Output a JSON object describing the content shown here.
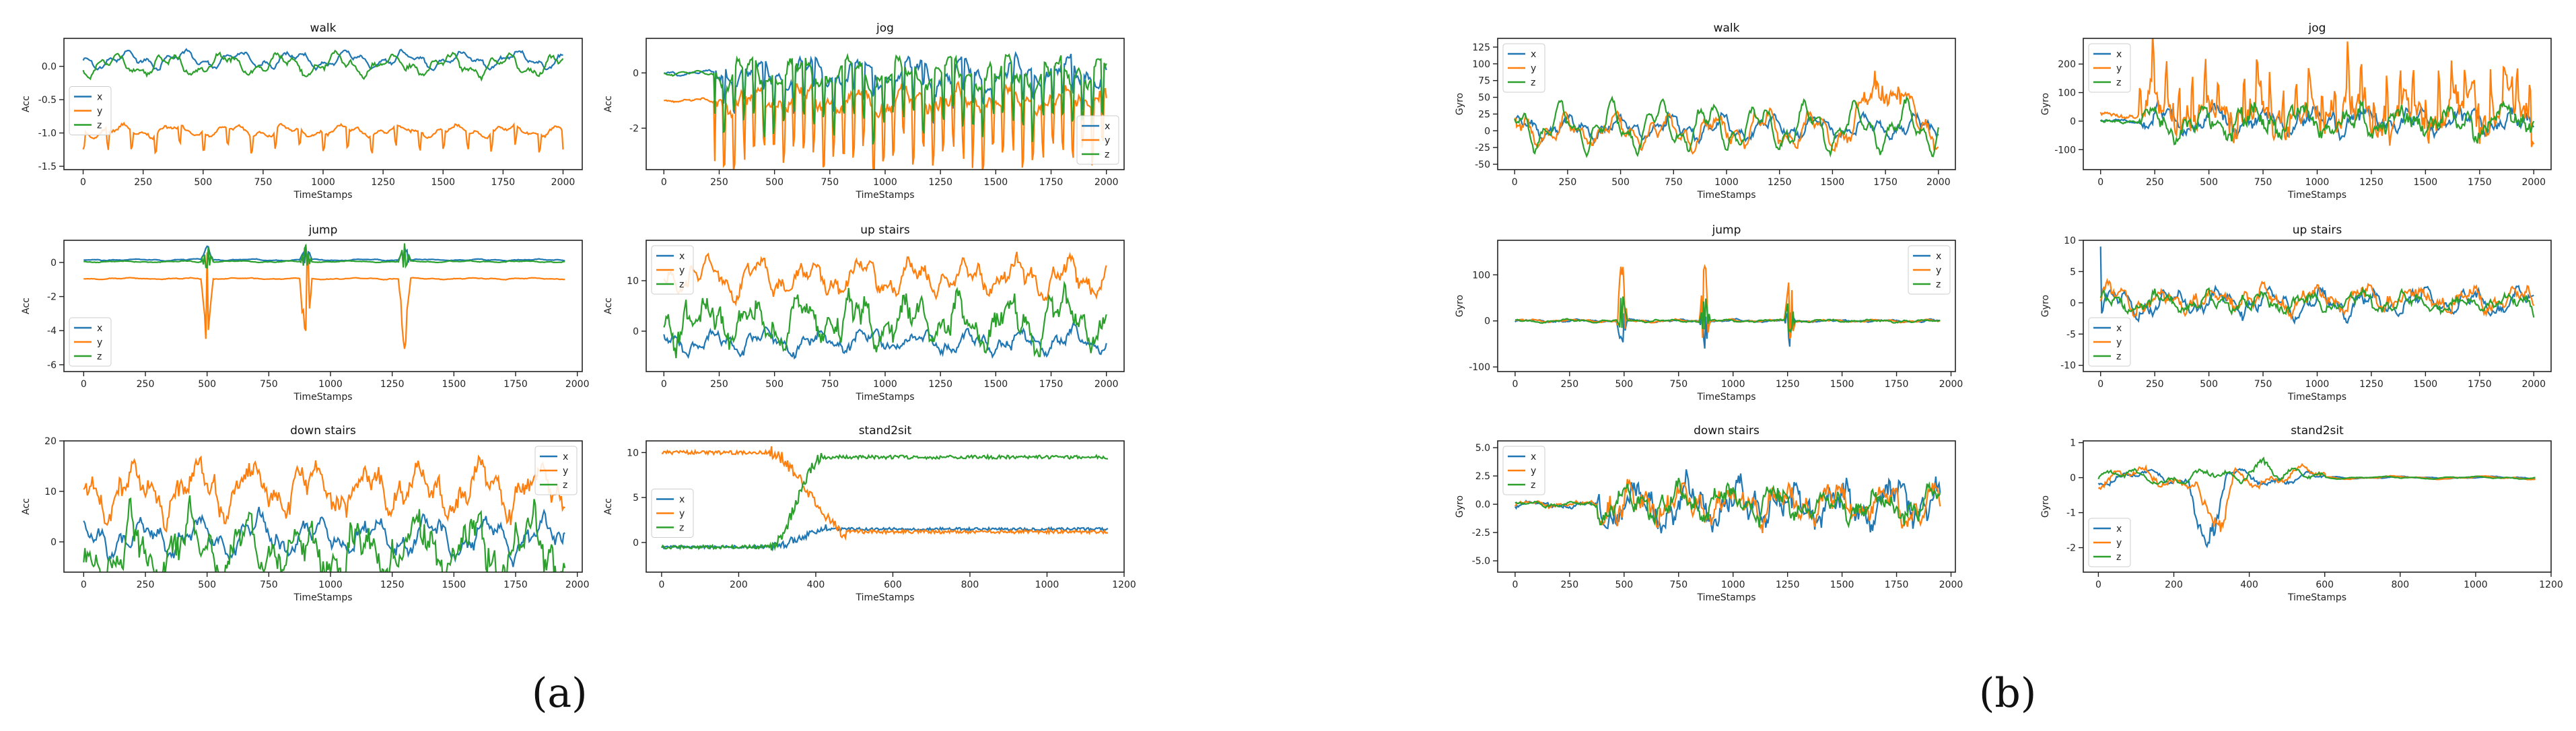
{
  "panel_labels": [
    "(a)",
    "(b)"
  ],
  "colors": {
    "x": "#1f77b4",
    "y": "#ff7f0e",
    "z": "#2ca02c"
  },
  "chart_data": [
    {
      "type": "line",
      "panel": "a",
      "title": "walk",
      "ylabel": "Acc",
      "xlabel": "TimeStamps",
      "xlim": [
        -80,
        2080
      ],
      "ylim": [
        -1.55,
        0.42
      ],
      "xticks": [
        0,
        250,
        500,
        750,
        1000,
        1250,
        1500,
        1750,
        2000
      ],
      "yticks": [
        -1.5,
        -1.0,
        -0.5,
        0.0
      ],
      "ytick_labels": [
        "-1.5",
        "-1.0",
        "-0.5",
        "0.0"
      ],
      "legend": "middle-left",
      "n": 2000,
      "series": [
        {
          "name": "x",
          "base": 0.1,
          "amp": 0.09,
          "noise": 0.03
        },
        {
          "name": "y",
          "base": -0.97,
          "amp": 0.06,
          "noise": 0.025,
          "spike": -0.3,
          "period": 100
        },
        {
          "name": "z",
          "base": 0.02,
          "amp": 0.12,
          "noise": 0.04
        }
      ]
    },
    {
      "type": "line",
      "panel": "a",
      "title": "jog",
      "ylabel": "Acc",
      "xlabel": "TimeStamps",
      "xlim": [
        -80,
        2080
      ],
      "ylim": [
        -3.5,
        1.25
      ],
      "xticks": [
        0,
        250,
        500,
        750,
        1000,
        1250,
        1500,
        1750,
        2000
      ],
      "yticks": [
        -2,
        0
      ],
      "ytick_labels": [
        "-2",
        "0"
      ],
      "legend": "lower-right",
      "n": 2000,
      "series": [
        {
          "name": "x",
          "base": 0.0,
          "amp": 0.4,
          "noise": 0.2,
          "spike": -1.2,
          "period": 45,
          "start": 230
        },
        {
          "name": "y",
          "base": -1.0,
          "amp": 0.3,
          "noise": 0.25,
          "spike": -2.3,
          "period": 45,
          "start": 230
        },
        {
          "name": "z",
          "base": 0.0,
          "amp": 0.4,
          "noise": 0.2,
          "spike": -2.0,
          "period": 45,
          "start": 230
        }
      ]
    },
    {
      "type": "line",
      "panel": "a",
      "title": "jump",
      "ylabel": "Acc",
      "xlabel": "TimeStamps",
      "xlim": [
        -80,
        2020
      ],
      "ylim": [
        -6.4,
        1.3
      ],
      "xticks": [
        0,
        250,
        500,
        750,
        1000,
        1250,
        1500,
        1750,
        2000
      ],
      "yticks": [
        -6,
        -4,
        -2,
        0
      ],
      "ytick_labels": [
        "-6",
        "-4",
        "-2",
        "0"
      ],
      "legend": "lower-left",
      "n": 1950,
      "events": [
        500,
        900,
        1300
      ],
      "series": [
        {
          "name": "x",
          "base": 0.15,
          "amp": 0.03,
          "noise": 0.02,
          "ev": 1.0
        },
        {
          "name": "y",
          "base": -0.95,
          "amp": 0.03,
          "noise": 0.02,
          "ev": -5.0
        },
        {
          "name": "z",
          "base": 0.05,
          "amp": 0.03,
          "noise": 0.02,
          "ev": 1.2
        }
      ]
    },
    {
      "type": "line",
      "panel": "a",
      "title": "up stairs",
      "ylabel": "Acc",
      "xlabel": "TimeStamps",
      "xlim": [
        -80,
        2080
      ],
      "ylim": [
        -8,
        18
      ],
      "xticks": [
        0,
        250,
        500,
        750,
        1000,
        1250,
        1500,
        1750,
        2000
      ],
      "yticks": [
        0,
        10
      ],
      "ytick_labels": [
        "0",
        "10"
      ],
      "legend": "upper-left",
      "n": 2000,
      "series": [
        {
          "name": "x",
          "base": -2,
          "amp": 1.5,
          "noise": 1.0
        },
        {
          "name": "y",
          "base": 10.5,
          "amp": 2.5,
          "noise": 1.5
        },
        {
          "name": "z",
          "base": 2,
          "amp": 3.0,
          "noise": 2.5
        }
      ]
    },
    {
      "type": "line",
      "panel": "a",
      "title": "down stairs",
      "ylabel": "Acc",
      "xlabel": "TimeStamps",
      "xlim": [
        -80,
        2020
      ],
      "ylim": [
        -6,
        20
      ],
      "xticks": [
        0,
        250,
        500,
        750,
        1000,
        1250,
        1500,
        1750,
        2000
      ],
      "yticks": [
        0,
        10,
        20
      ],
      "ytick_labels": [
        "0",
        "10",
        "20"
      ],
      "legend": "upper-right",
      "n": 1950,
      "series": [
        {
          "name": "x",
          "base": 1,
          "amp": 2.5,
          "noise": 1.5
        },
        {
          "name": "y",
          "base": 10,
          "amp": 3.0,
          "noise": 2.5
        },
        {
          "name": "z",
          "base": -1.5,
          "amp": 4.0,
          "noise": 3.5
        }
      ]
    },
    {
      "type": "line",
      "panel": "a",
      "title": "stand2sit",
      "ylabel": "Acc",
      "xlabel": "TimeStamps",
      "xlim": [
        -40,
        1200
      ],
      "ylim": [
        -3.3,
        11.3
      ],
      "xticks": [
        0,
        200,
        400,
        600,
        800,
        1000,
        1200
      ],
      "yticks": [
        0,
        5,
        10
      ],
      "ytick_labels": [
        "0",
        "5",
        "10"
      ],
      "legend": "middle-left",
      "n": 1160,
      "series": [
        {
          "name": "x",
          "from": -0.5,
          "to": 1.5,
          "noise": 0.15,
          "transition": [
            280,
            430
          ]
        },
        {
          "name": "y",
          "from": 10,
          "to": 1.2,
          "noise": 0.2,
          "transition": [
            280,
            480
          ]
        },
        {
          "name": "z",
          "from": -0.5,
          "to": 9.5,
          "noise": 0.2,
          "transition": [
            280,
            420
          ]
        }
      ]
    },
    {
      "type": "line",
      "panel": "b",
      "title": "walk",
      "ylabel": "Gyro",
      "xlabel": "TimeStamps",
      "xlim": [
        -80,
        2080
      ],
      "ylim": [
        -58,
        138
      ],
      "xticks": [
        0,
        250,
        500,
        750,
        1000,
        1250,
        1500,
        1750,
        2000
      ],
      "yticks": [
        -50,
        -25,
        0,
        25,
        50,
        75,
        100,
        125
      ],
      "ytick_labels": [
        "-50",
        "-25",
        "0",
        "25",
        "50",
        "75",
        "100",
        "125"
      ],
      "legend": "upper-left",
      "n": 2000,
      "series": [
        {
          "name": "x",
          "base": 5,
          "amp": 12,
          "noise": 6
        },
        {
          "name": "y",
          "base": 0,
          "amp": 18,
          "noise": 8,
          "bump": [
            1600,
            1900,
            85
          ]
        },
        {
          "name": "z",
          "base": 5,
          "amp": 25,
          "noise": 6
        }
      ]
    },
    {
      "type": "line",
      "panel": "b",
      "title": "jog",
      "ylabel": "Gyro",
      "xlabel": "TimeStamps",
      "xlim": [
        -80,
        2080
      ],
      "ylim": [
        -170,
        290
      ],
      "xticks": [
        0,
        250,
        500,
        750,
        1000,
        1250,
        1500,
        1750,
        2000
      ],
      "yticks": [
        -100,
        0,
        100,
        200
      ],
      "ytick_labels": [
        "-100",
        "0",
        "100",
        "200"
      ],
      "legend": "upper-left",
      "n": 2000,
      "series": [
        {
          "name": "x",
          "base": 0,
          "amp": 30,
          "noise": 25,
          "start": 180
        },
        {
          "name": "y",
          "base": 20,
          "amp": 50,
          "noise": 60,
          "start": 180,
          "spike": 150,
          "period": 60
        },
        {
          "name": "z",
          "base": 0,
          "amp": 30,
          "noise": 30,
          "start": 180
        }
      ]
    },
    {
      "type": "line",
      "panel": "b",
      "title": "jump",
      "ylabel": "Gyro",
      "xlabel": "TimeStamps",
      "xlim": [
        -80,
        2020
      ],
      "ylim": [
        -110,
        175
      ],
      "xticks": [
        0,
        250,
        500,
        750,
        1000,
        1250,
        1500,
        1750,
        2000
      ],
      "yticks": [
        -100,
        0,
        100
      ],
      "ytick_labels": [
        "-100",
        "0",
        "100"
      ],
      "legend": "upper-right",
      "n": 1950,
      "events": [
        490,
        870,
        1260
      ],
      "series": [
        {
          "name": "x",
          "base": 0,
          "amp": 2,
          "noise": 1.5,
          "ev": -60
        },
        {
          "name": "y",
          "base": 0,
          "amp": 2,
          "noise": 1.5,
          "ev": 150
        },
        {
          "name": "z",
          "base": 0,
          "amp": 2,
          "noise": 1.5,
          "ev": 70
        }
      ]
    },
    {
      "type": "line",
      "panel": "b",
      "title": "up stairs",
      "ylabel": "Gyro",
      "xlabel": "TimeStamps",
      "xlim": [
        -80,
        2080
      ],
      "ylim": [
        -11,
        10
      ],
      "xticks": [
        0,
        250,
        500,
        750,
        1000,
        1250,
        1500,
        1750,
        2000
      ],
      "yticks": [
        -10,
        -5,
        0,
        5,
        10
      ],
      "ytick_labels": [
        "-10",
        "-5",
        "0",
        "5",
        "10"
      ],
      "legend": "lower-left",
      "n": 2000,
      "series": [
        {
          "name": "x",
          "base": 0,
          "amp": 1.5,
          "noise": 0.8,
          "spike0": 9
        },
        {
          "name": "y",
          "base": 0.5,
          "amp": 1.2,
          "noise": 1.0
        },
        {
          "name": "z",
          "base": 0,
          "amp": 1.0,
          "noise": 0.8
        }
      ]
    },
    {
      "type": "line",
      "panel": "b",
      "title": "down stairs",
      "ylabel": "Gyro",
      "xlabel": "TimeStamps",
      "xlim": [
        -80,
        2020
      ],
      "ylim": [
        -6,
        5.6
      ],
      "xticks": [
        0,
        250,
        500,
        750,
        1000,
        1250,
        1500,
        1750,
        2000
      ],
      "yticks": [
        -5.0,
        -2.5,
        0.0,
        2.5,
        5.0
      ],
      "ytick_labels": [
        "-5.0",
        "-2.5",
        "0.0",
        "2.5",
        "5.0"
      ],
      "legend": "upper-left",
      "n": 1950,
      "series": [
        {
          "name": "x",
          "base": 0,
          "amp": 1.0,
          "noise": 1.2,
          "start": 380
        },
        {
          "name": "y",
          "base": 0,
          "amp": 1.0,
          "noise": 1.0,
          "start": 380
        },
        {
          "name": "z",
          "base": 0,
          "amp": 0.8,
          "noise": 0.8,
          "start": 380
        }
      ]
    },
    {
      "type": "line",
      "panel": "b",
      "title": "stand2sit",
      "ylabel": "Gyro",
      "xlabel": "TimeStamps",
      "xlim": [
        -40,
        1200
      ],
      "ylim": [
        -2.7,
        1.05
      ],
      "xticks": [
        0,
        200,
        400,
        600,
        800,
        1000,
        1200
      ],
      "yticks": [
        -2,
        -1,
        0,
        1
      ],
      "ytick_labels": [
        "-2",
        "-1",
        "0",
        "1"
      ],
      "legend": "lower-left",
      "n": 1160,
      "series": [
        {
          "name": "x",
          "base": 0,
          "amp": 0.15,
          "noise": 0.06,
          "active": [
            0,
            600
          ],
          "bump": [
            240,
            340,
            -2.1
          ]
        },
        {
          "name": "y",
          "base": 0,
          "amp": 0.2,
          "noise": 0.08,
          "active": [
            0,
            600
          ],
          "bump": [
            260,
            360,
            -1.8
          ]
        },
        {
          "name": "z",
          "base": 0,
          "amp": 0.15,
          "noise": 0.06,
          "active": [
            0,
            600
          ],
          "bump": [
            380,
            480,
            0.6
          ]
        }
      ]
    }
  ]
}
